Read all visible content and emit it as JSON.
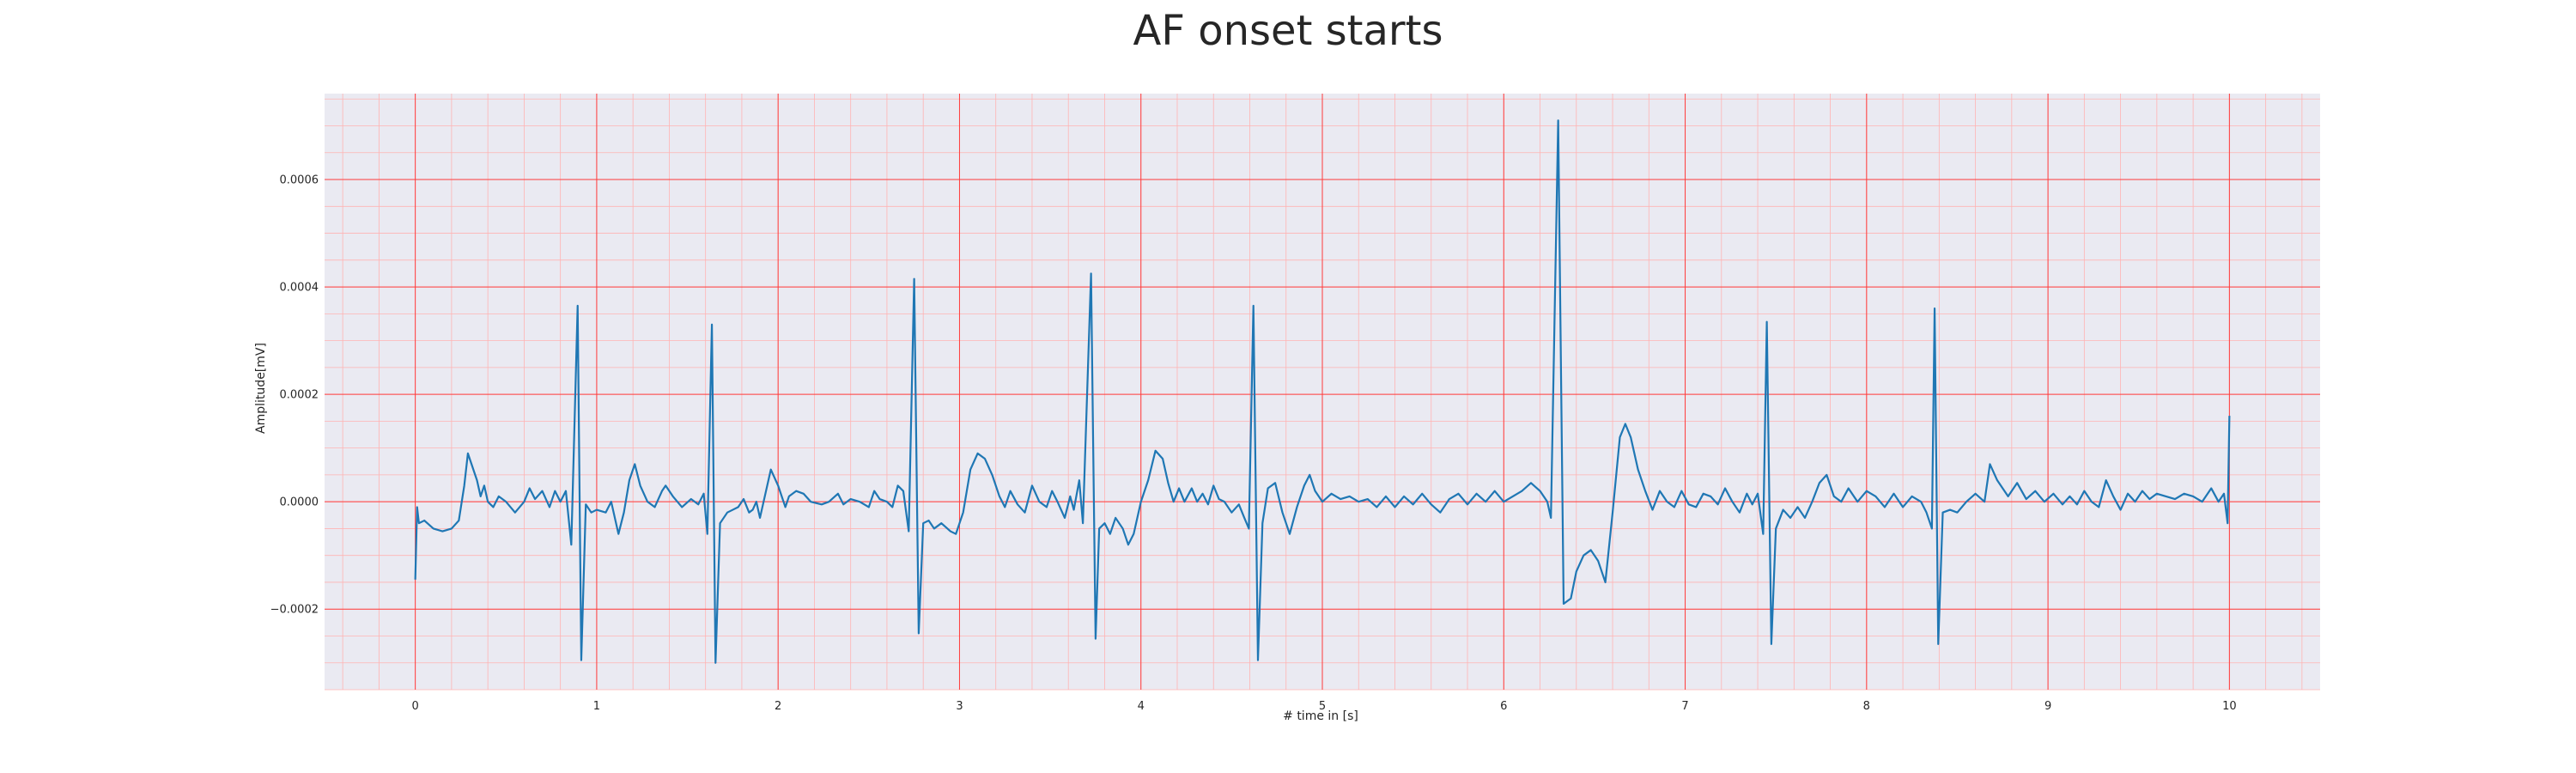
{
  "chart_data": {
    "type": "line",
    "title": "AF onset starts",
    "xlabel": "# time in [s]",
    "ylabel": "Amplitude[mV]",
    "xlim": [
      -0.5,
      10.5
    ],
    "ylim": [
      -0.00035,
      0.00076
    ],
    "x_ticks": [
      0,
      1,
      2,
      3,
      4,
      5,
      6,
      7,
      8,
      9,
      10
    ],
    "x_tick_labels": [
      "0",
      "1",
      "2",
      "3",
      "4",
      "5",
      "6",
      "7",
      "8",
      "9",
      "10"
    ],
    "y_ticks": [
      -0.0002,
      0.0,
      0.0002,
      0.0004,
      0.0006
    ],
    "y_tick_labels": [
      "−0.0002",
      "0.0000",
      "0.0002",
      "0.0004",
      "0.0006"
    ],
    "grid": true,
    "minor_grid": true,
    "background_color": "#eaeaf2",
    "major_grid_color": "#ff3b3b",
    "minor_grid_color": "#ffb3b3",
    "series": [
      {
        "color": "#1f77b4",
        "points": [
          [
            0.0,
            -0.000145
          ],
          [
            0.01,
            -1e-05
          ],
          [
            0.02,
            -4e-05
          ],
          [
            0.05,
            -3.5e-05
          ],
          [
            0.1,
            -5e-05
          ],
          [
            0.15,
            -5.5e-05
          ],
          [
            0.2,
            -5e-05
          ],
          [
            0.24,
            -3.5e-05
          ],
          [
            0.27,
            3e-05
          ],
          [
            0.29,
            9e-05
          ],
          [
            0.31,
            7e-05
          ],
          [
            0.34,
            4e-05
          ],
          [
            0.36,
            1e-05
          ],
          [
            0.38,
            3e-05
          ],
          [
            0.4,
            0.0
          ],
          [
            0.43,
            -1e-05
          ],
          [
            0.46,
            1e-05
          ],
          [
            0.5,
            0.0
          ],
          [
            0.55,
            -2e-05
          ],
          [
            0.6,
            0.0
          ],
          [
            0.63,
            2.5e-05
          ],
          [
            0.66,
            5e-06
          ],
          [
            0.7,
            2e-05
          ],
          [
            0.74,
            -1e-05
          ],
          [
            0.77,
            2e-05
          ],
          [
            0.8,
            0.0
          ],
          [
            0.83,
            2e-05
          ],
          [
            0.86,
            -8e-05
          ],
          [
            0.895,
            0.000365
          ],
          [
            0.915,
            -0.000295
          ],
          [
            0.94,
            -5e-06
          ],
          [
            0.97,
            -2e-05
          ],
          [
            1.0,
            -1.5e-05
          ],
          [
            1.05,
            -2e-05
          ],
          [
            1.08,
            0.0
          ],
          [
            1.12,
            -6e-05
          ],
          [
            1.15,
            -2e-05
          ],
          [
            1.18,
            4e-05
          ],
          [
            1.21,
            7e-05
          ],
          [
            1.24,
            3e-05
          ],
          [
            1.28,
            0.0
          ],
          [
            1.32,
            -1e-05
          ],
          [
            1.36,
            2e-05
          ],
          [
            1.38,
            3e-05
          ],
          [
            1.42,
            1e-05
          ],
          [
            1.47,
            -1e-05
          ],
          [
            1.52,
            5e-06
          ],
          [
            1.56,
            -5e-06
          ],
          [
            1.59,
            1.5e-05
          ],
          [
            1.61,
            -6e-05
          ],
          [
            1.635,
            0.00033
          ],
          [
            1.655,
            -0.0003
          ],
          [
            1.68,
            -4e-05
          ],
          [
            1.72,
            -2e-05
          ],
          [
            1.75,
            -1.5e-05
          ],
          [
            1.78,
            -1e-05
          ],
          [
            1.81,
            5e-06
          ],
          [
            1.84,
            -2e-05
          ],
          [
            1.86,
            -1.5e-05
          ],
          [
            1.88,
            0.0
          ],
          [
            1.9,
            -3e-05
          ],
          [
            1.92,
            0.0
          ],
          [
            1.96,
            6e-05
          ],
          [
            2.0,
            3e-05
          ],
          [
            2.04,
            -1e-05
          ],
          [
            2.06,
            1e-05
          ],
          [
            2.1,
            2e-05
          ],
          [
            2.14,
            1.5e-05
          ],
          [
            2.18,
            0.0
          ],
          [
            2.24,
            -5e-06
          ],
          [
            2.28,
            0.0
          ],
          [
            2.33,
            1.5e-05
          ],
          [
            2.36,
            -5e-06
          ],
          [
            2.4,
            5e-06
          ],
          [
            2.45,
            0.0
          ],
          [
            2.5,
            -1e-05
          ],
          [
            2.53,
            2e-05
          ],
          [
            2.56,
            5e-06
          ],
          [
            2.6,
            0.0
          ],
          [
            2.63,
            -1e-05
          ],
          [
            2.66,
            3e-05
          ],
          [
            2.69,
            2e-05
          ],
          [
            2.72,
            -5.5e-05
          ],
          [
            2.75,
            0.000415
          ],
          [
            2.775,
            -0.000245
          ],
          [
            2.8,
            -4e-05
          ],
          [
            2.83,
            -3.5e-05
          ],
          [
            2.86,
            -5e-05
          ],
          [
            2.9,
            -4e-05
          ],
          [
            2.95,
            -5.5e-05
          ],
          [
            2.98,
            -6e-05
          ],
          [
            3.02,
            -2e-05
          ],
          [
            3.06,
            6e-05
          ],
          [
            3.1,
            9e-05
          ],
          [
            3.14,
            8e-05
          ],
          [
            3.18,
            5e-05
          ],
          [
            3.22,
            1e-05
          ],
          [
            3.25,
            -1e-05
          ],
          [
            3.28,
            2e-05
          ],
          [
            3.32,
            -5e-06
          ],
          [
            3.36,
            -2e-05
          ],
          [
            3.4,
            3e-05
          ],
          [
            3.44,
            0.0
          ],
          [
            3.48,
            -1e-05
          ],
          [
            3.51,
            2e-05
          ],
          [
            3.54,
            0.0
          ],
          [
            3.58,
            -3e-05
          ],
          [
            3.61,
            1e-05
          ],
          [
            3.63,
            -1.5e-05
          ],
          [
            3.66,
            4e-05
          ],
          [
            3.68,
            -4e-05
          ],
          [
            3.725,
            0.000425
          ],
          [
            3.75,
            -0.000255
          ],
          [
            3.77,
            -5e-05
          ],
          [
            3.8,
            -4e-05
          ],
          [
            3.83,
            -6e-05
          ],
          [
            3.86,
            -3e-05
          ],
          [
            3.9,
            -5e-05
          ],
          [
            3.93,
            -8e-05
          ],
          [
            3.96,
            -6e-05
          ],
          [
            4.0,
            0.0
          ],
          [
            4.04,
            4e-05
          ],
          [
            4.08,
            9.5e-05
          ],
          [
            4.12,
            8e-05
          ],
          [
            4.15,
            3.5e-05
          ],
          [
            4.18,
            0.0
          ],
          [
            4.21,
            2.5e-05
          ],
          [
            4.24,
            0.0
          ],
          [
            4.28,
            2.5e-05
          ],
          [
            4.31,
            0.0
          ],
          [
            4.34,
            1.5e-05
          ],
          [
            4.37,
            -5e-06
          ],
          [
            4.4,
            3e-05
          ],
          [
            4.43,
            5e-06
          ],
          [
            4.46,
            0.0
          ],
          [
            4.5,
            -2e-05
          ],
          [
            4.54,
            -5e-06
          ],
          [
            4.57,
            -3e-05
          ],
          [
            4.595,
            -5e-05
          ],
          [
            4.62,
            0.000365
          ],
          [
            4.645,
            -0.000295
          ],
          [
            4.67,
            -4e-05
          ],
          [
            4.7,
            2.5e-05
          ],
          [
            4.74,
            3.5e-05
          ],
          [
            4.78,
            -2e-05
          ],
          [
            4.82,
            -6e-05
          ],
          [
            4.86,
            -1e-05
          ],
          [
            4.9,
            3e-05
          ],
          [
            4.93,
            5e-05
          ],
          [
            4.96,
            2e-05
          ],
          [
            5.0,
            0.0
          ],
          [
            5.05,
            1.5e-05
          ],
          [
            5.1,
            5e-06
          ],
          [
            5.15,
            1e-05
          ],
          [
            5.2,
            0.0
          ],
          [
            5.25,
            5e-06
          ],
          [
            5.3,
            -1e-05
          ],
          [
            5.35,
            1e-05
          ],
          [
            5.4,
            -1e-05
          ],
          [
            5.45,
            1e-05
          ],
          [
            5.5,
            -5e-06
          ],
          [
            5.55,
            1.5e-05
          ],
          [
            5.6,
            -5e-06
          ],
          [
            5.65,
            -2e-05
          ],
          [
            5.7,
            5e-06
          ],
          [
            5.75,
            1.5e-05
          ],
          [
            5.8,
            -5e-06
          ],
          [
            5.85,
            1.5e-05
          ],
          [
            5.9,
            0.0
          ],
          [
            5.95,
            2e-05
          ],
          [
            6.0,
            0.0
          ],
          [
            6.05,
            1e-05
          ],
          [
            6.1,
            2e-05
          ],
          [
            6.15,
            3.5e-05
          ],
          [
            6.2,
            2e-05
          ],
          [
            6.24,
            0.0
          ],
          [
            6.26,
            -3e-05
          ],
          [
            6.3,
            0.00071
          ],
          [
            6.33,
            -0.00019
          ],
          [
            6.35,
            -0.000185
          ],
          [
            6.37,
            -0.00018
          ],
          [
            6.4,
            -0.00013
          ],
          [
            6.44,
            -0.0001
          ],
          [
            6.48,
            -9e-05
          ],
          [
            6.52,
            -0.00011
          ],
          [
            6.56,
            -0.00015
          ],
          [
            6.6,
            -2e-05
          ],
          [
            6.64,
            0.00012
          ],
          [
            6.67,
            0.000145
          ],
          [
            6.7,
            0.00012
          ],
          [
            6.74,
            6e-05
          ],
          [
            6.78,
            2e-05
          ],
          [
            6.82,
            -1.5e-05
          ],
          [
            6.86,
            2e-05
          ],
          [
            6.9,
            0.0
          ],
          [
            6.94,
            -1e-05
          ],
          [
            6.98,
            2e-05
          ],
          [
            7.02,
            -5e-06
          ],
          [
            7.06,
            -1e-05
          ],
          [
            7.1,
            1.5e-05
          ],
          [
            7.14,
            1e-05
          ],
          [
            7.18,
            -5e-06
          ],
          [
            7.22,
            2.5e-05
          ],
          [
            7.26,
            0.0
          ],
          [
            7.3,
            -2e-05
          ],
          [
            7.34,
            1.5e-05
          ],
          [
            7.37,
            -5e-06
          ],
          [
            7.4,
            1.5e-05
          ],
          [
            7.43,
            -6e-05
          ],
          [
            7.45,
            0.000335
          ],
          [
            7.475,
            -0.000265
          ],
          [
            7.5,
            -5e-05
          ],
          [
            7.54,
            -1.5e-05
          ],
          [
            7.58,
            -3e-05
          ],
          [
            7.62,
            -1e-05
          ],
          [
            7.66,
            -3e-05
          ],
          [
            7.7,
            0.0
          ],
          [
            7.74,
            3.5e-05
          ],
          [
            7.78,
            5e-05
          ],
          [
            7.82,
            1e-05
          ],
          [
            7.86,
            0.0
          ],
          [
            7.9,
            2.5e-05
          ],
          [
            7.95,
            0.0
          ],
          [
            8.0,
            2e-05
          ],
          [
            8.05,
            1e-05
          ],
          [
            8.1,
            -1e-05
          ],
          [
            8.15,
            1.5e-05
          ],
          [
            8.2,
            -1e-05
          ],
          [
            8.25,
            1e-05
          ],
          [
            8.3,
            0.0
          ],
          [
            8.33,
            -2e-05
          ],
          [
            8.36,
            -5e-05
          ],
          [
            8.375,
            0.00036
          ],
          [
            8.395,
            -0.000265
          ],
          [
            8.42,
            -2e-05
          ],
          [
            8.46,
            -1.5e-05
          ],
          [
            8.5,
            -2e-05
          ],
          [
            8.55,
            0.0
          ],
          [
            8.6,
            1.5e-05
          ],
          [
            8.65,
            0.0
          ],
          [
            8.68,
            7e-05
          ],
          [
            8.72,
            4e-05
          ],
          [
            8.78,
            1e-05
          ],
          [
            8.83,
            3.5e-05
          ],
          [
            8.88,
            5e-06
          ],
          [
            8.93,
            2e-05
          ],
          [
            8.98,
            0.0
          ],
          [
            9.03,
            1.5e-05
          ],
          [
            9.08,
            -5e-06
          ],
          [
            9.12,
            1e-05
          ],
          [
            9.16,
            -5e-06
          ],
          [
            9.2,
            2e-05
          ],
          [
            9.24,
            0.0
          ],
          [
            9.28,
            -1e-05
          ],
          [
            9.32,
            4e-05
          ],
          [
            9.36,
            1e-05
          ],
          [
            9.4,
            -1.5e-05
          ],
          [
            9.44,
            1.5e-05
          ],
          [
            9.48,
            0.0
          ],
          [
            9.52,
            2e-05
          ],
          [
            9.56,
            5e-06
          ],
          [
            9.6,
            1.5e-05
          ],
          [
            9.65,
            1e-05
          ],
          [
            9.7,
            5e-06
          ],
          [
            9.75,
            1.5e-05
          ],
          [
            9.8,
            1e-05
          ],
          [
            9.85,
            0.0
          ],
          [
            9.9,
            2.5e-05
          ],
          [
            9.94,
            0.0
          ],
          [
            9.97,
            1.5e-05
          ],
          [
            9.99,
            -4e-05
          ],
          [
            10.0,
            0.00016
          ]
        ]
      }
    ]
  }
}
